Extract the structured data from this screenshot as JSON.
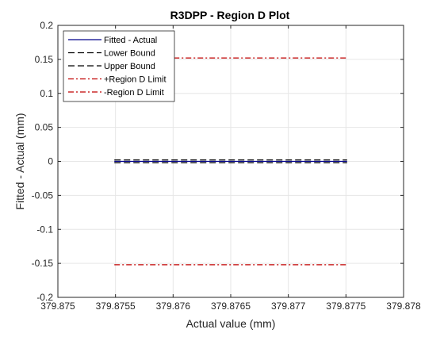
{
  "chart_data": {
    "type": "line",
    "title": "R3DPP - Region D Plot",
    "xlabel": "Actual value (mm)",
    "ylabel": "Fitted - Actual (mm)",
    "xlim": [
      379.875,
      379.878
    ],
    "ylim": [
      -0.2,
      0.2
    ],
    "x_ticks": [
      379.875,
      379.8755,
      379.876,
      379.8765,
      379.877,
      379.8775,
      379.878
    ],
    "x_tick_labels": [
      "379.875",
      "379.8755",
      "379.876",
      "379.8765",
      "379.877",
      "379.8775",
      "379.878"
    ],
    "y_ticks": [
      -0.2,
      -0.15,
      -0.1,
      -0.05,
      0,
      0.05,
      0.1,
      0.15,
      0.2
    ],
    "y_tick_labels": [
      "-0.2",
      "-0.15",
      "-0.1",
      "-0.05",
      "0",
      "0.05",
      "0.1",
      "0.15",
      "0.2"
    ],
    "grid": true,
    "legend_position": "top-left",
    "series": [
      {
        "name": "Fitted - Actual",
        "x": [
          379.87549,
          379.87751
        ],
        "y": [
          0.0,
          0.0
        ],
        "color": "#00008b",
        "style": "solid"
      },
      {
        "name": "Lower Bound",
        "x": [
          379.87549,
          379.87751
        ],
        "y": [
          -0.002,
          -0.002
        ],
        "color": "#000000",
        "style": "dashed"
      },
      {
        "name": "Upper Bound",
        "x": [
          379.87549,
          379.87751
        ],
        "y": [
          0.002,
          0.002
        ],
        "color": "#000000",
        "style": "dashed"
      },
      {
        "name": "+Region D Limit",
        "x": [
          379.87549,
          379.87751
        ],
        "y": [
          0.152,
          0.152
        ],
        "color": "#c00000",
        "style": "dashdot"
      },
      {
        "name": "-Region D Limit",
        "x": [
          379.87549,
          379.87751
        ],
        "y": [
          -0.152,
          -0.152
        ],
        "color": "#c00000",
        "style": "dashdot"
      }
    ]
  }
}
